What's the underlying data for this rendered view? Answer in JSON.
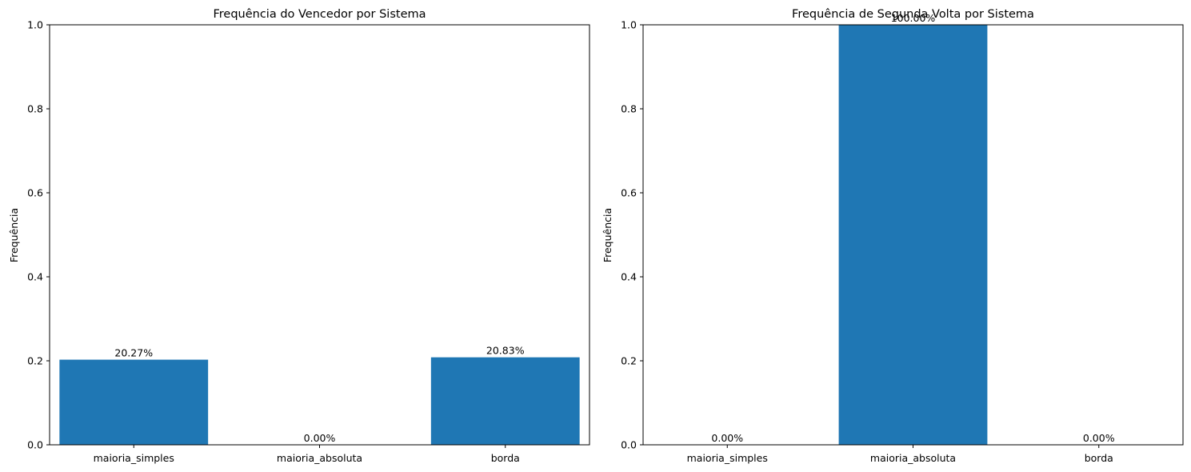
{
  "chart_data": [
    {
      "type": "bar",
      "title": "Frequência do Vencedor por Sistema",
      "ylabel": "Frequência",
      "xlabel": "",
      "categories": [
        "maioria_simples",
        "maioria_absoluta",
        "borda"
      ],
      "values": [
        0.2027,
        0.0,
        0.2083
      ],
      "data_labels": [
        "20.27%",
        "0.00%",
        "20.83%"
      ],
      "ylim": [
        0,
        1
      ],
      "yticks": [
        "0.0",
        "0.2",
        "0.4",
        "0.6",
        "0.8",
        "1.0"
      ],
      "bar_color": "#1f77b4",
      "grid": false
    },
    {
      "type": "bar",
      "title": "Frequência de Segunda Volta por Sistema",
      "ylabel": "Frequência",
      "xlabel": "",
      "categories": [
        "maioria_simples",
        "maioria_absoluta",
        "borda"
      ],
      "values": [
        0.0,
        1.0,
        0.0
      ],
      "data_labels": [
        "0.00%",
        "100.00%",
        "0.00%"
      ],
      "ylim": [
        0,
        1
      ],
      "yticks": [
        "0.0",
        "0.2",
        "0.4",
        "0.6",
        "0.8",
        "1.0"
      ],
      "bar_color": "#1f77b4",
      "grid": false
    }
  ]
}
